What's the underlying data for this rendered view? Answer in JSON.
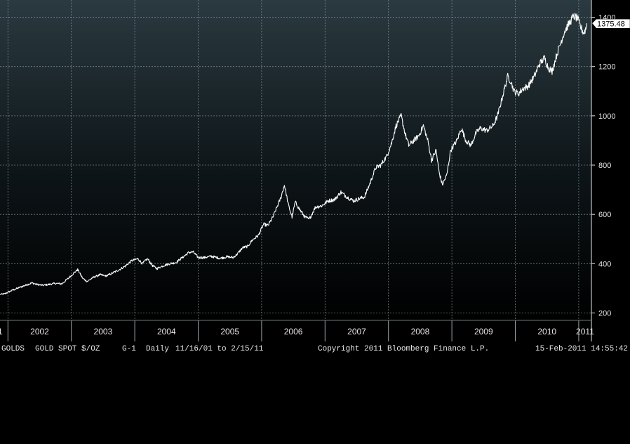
{
  "footer": {
    "ticker": "GOLDS",
    "description": "GOLD SPOT $/OZ",
    "graph_id": "G-1",
    "period": "Daily",
    "range": "11/16/01 to 2/15/11",
    "copyright": "Copyright 2011 Bloomberg Finance L.P.",
    "timestamp": "15-Feb-2011 14:55:42"
  },
  "colors": {
    "bg_top": "#2a3a40",
    "bg_bottom": "#000000",
    "line": "#ffffff",
    "grid": "#8a9ca4",
    "text": "#e6e6e6"
  },
  "chart_data": {
    "type": "line",
    "title": "",
    "xlabel": "",
    "ylabel": "",
    "ylim": [
      170,
      1470
    ],
    "xlim": [
      2001.875,
      2011.2
    ],
    "y_ticks": [
      200,
      400,
      600,
      800,
      1000,
      1200,
      1400
    ],
    "x_tick_labels": [
      "2002",
      "2003",
      "2004",
      "2005",
      "2006",
      "2007",
      "2008",
      "2009",
      "2010",
      "2011"
    ],
    "x_edge_label": "1",
    "grid": true,
    "last_value_label": "1375.48",
    "series": [
      {
        "values": [
          [
            2001.88,
            275
          ],
          [
            2001.95,
            278
          ],
          [
            2002.05,
            290
          ],
          [
            2002.15,
            300
          ],
          [
            2002.25,
            310
          ],
          [
            2002.38,
            322
          ],
          [
            2002.45,
            316
          ],
          [
            2002.55,
            312
          ],
          [
            2002.65,
            316
          ],
          [
            2002.75,
            320
          ],
          [
            2002.85,
            318
          ],
          [
            2002.95,
            340
          ],
          [
            2003.03,
            360
          ],
          [
            2003.1,
            376
          ],
          [
            2003.18,
            340
          ],
          [
            2003.25,
            328
          ],
          [
            2003.35,
            345
          ],
          [
            2003.45,
            355
          ],
          [
            2003.55,
            350
          ],
          [
            2003.65,
            362
          ],
          [
            2003.75,
            375
          ],
          [
            2003.85,
            390
          ],
          [
            2003.95,
            412
          ],
          [
            2004.05,
            420
          ],
          [
            2004.12,
            400
          ],
          [
            2004.2,
            420
          ],
          [
            2004.28,
            392
          ],
          [
            2004.35,
            380
          ],
          [
            2004.45,
            392
          ],
          [
            2004.55,
            400
          ],
          [
            2004.65,
            405
          ],
          [
            2004.75,
            425
          ],
          [
            2004.85,
            445
          ],
          [
            2004.92,
            448
          ],
          [
            2005.0,
            425
          ],
          [
            2005.1,
            425
          ],
          [
            2005.2,
            430
          ],
          [
            2005.35,
            422
          ],
          [
            2005.45,
            428
          ],
          [
            2005.55,
            425
          ],
          [
            2005.62,
            440
          ],
          [
            2005.7,
            465
          ],
          [
            2005.78,
            470
          ],
          [
            2005.85,
            495
          ],
          [
            2005.95,
            515
          ],
          [
            2006.03,
            560
          ],
          [
            2006.1,
            555
          ],
          [
            2006.18,
            590
          ],
          [
            2006.25,
            635
          ],
          [
            2006.3,
            665
          ],
          [
            2006.36,
            720
          ],
          [
            2006.42,
            640
          ],
          [
            2006.48,
            590
          ],
          [
            2006.53,
            650
          ],
          [
            2006.6,
            620
          ],
          [
            2006.68,
            590
          ],
          [
            2006.75,
            580
          ],
          [
            2006.85,
            630
          ],
          [
            2006.95,
            635
          ],
          [
            2007.05,
            655
          ],
          [
            2007.15,
            660
          ],
          [
            2007.25,
            690
          ],
          [
            2007.35,
            670
          ],
          [
            2007.45,
            655
          ],
          [
            2007.55,
            665
          ],
          [
            2007.62,
            670
          ],
          [
            2007.7,
            720
          ],
          [
            2007.8,
            790
          ],
          [
            2007.88,
            800
          ],
          [
            2007.97,
            835
          ],
          [
            2008.05,
            890
          ],
          [
            2008.12,
            960
          ],
          [
            2008.2,
            1000
          ],
          [
            2008.26,
            930
          ],
          [
            2008.32,
            880
          ],
          [
            2008.4,
            900
          ],
          [
            2008.48,
            920
          ],
          [
            2008.55,
            960
          ],
          [
            2008.62,
            900
          ],
          [
            2008.68,
            820
          ],
          [
            2008.75,
            860
          ],
          [
            2008.8,
            770
          ],
          [
            2008.85,
            720
          ],
          [
            2008.92,
            760
          ],
          [
            2008.98,
            860
          ],
          [
            2009.08,
            900
          ],
          [
            2009.15,
            950
          ],
          [
            2009.22,
            900
          ],
          [
            2009.3,
            880
          ],
          [
            2009.38,
            930
          ],
          [
            2009.45,
            950
          ],
          [
            2009.55,
            940
          ],
          [
            2009.65,
            960
          ],
          [
            2009.72,
            1000
          ],
          [
            2009.78,
            1060
          ],
          [
            2009.88,
            1160
          ],
          [
            2009.93,
            1140
          ],
          [
            2009.98,
            1100
          ],
          [
            2010.05,
            1090
          ],
          [
            2010.12,
            1110
          ],
          [
            2010.2,
            1120
          ],
          [
            2010.3,
            1160
          ],
          [
            2010.38,
            1210
          ],
          [
            2010.46,
            1235
          ],
          [
            2010.52,
            1195
          ],
          [
            2010.58,
            1180
          ],
          [
            2010.65,
            1245
          ],
          [
            2010.72,
            1300
          ],
          [
            2010.78,
            1345
          ],
          [
            2010.85,
            1375
          ],
          [
            2010.92,
            1405
          ],
          [
            2010.98,
            1395
          ],
          [
            2011.03,
            1360
          ],
          [
            2011.08,
            1335
          ],
          [
            2011.12,
            1360
          ],
          [
            2011.125,
            1375.48
          ]
        ]
      }
    ]
  }
}
